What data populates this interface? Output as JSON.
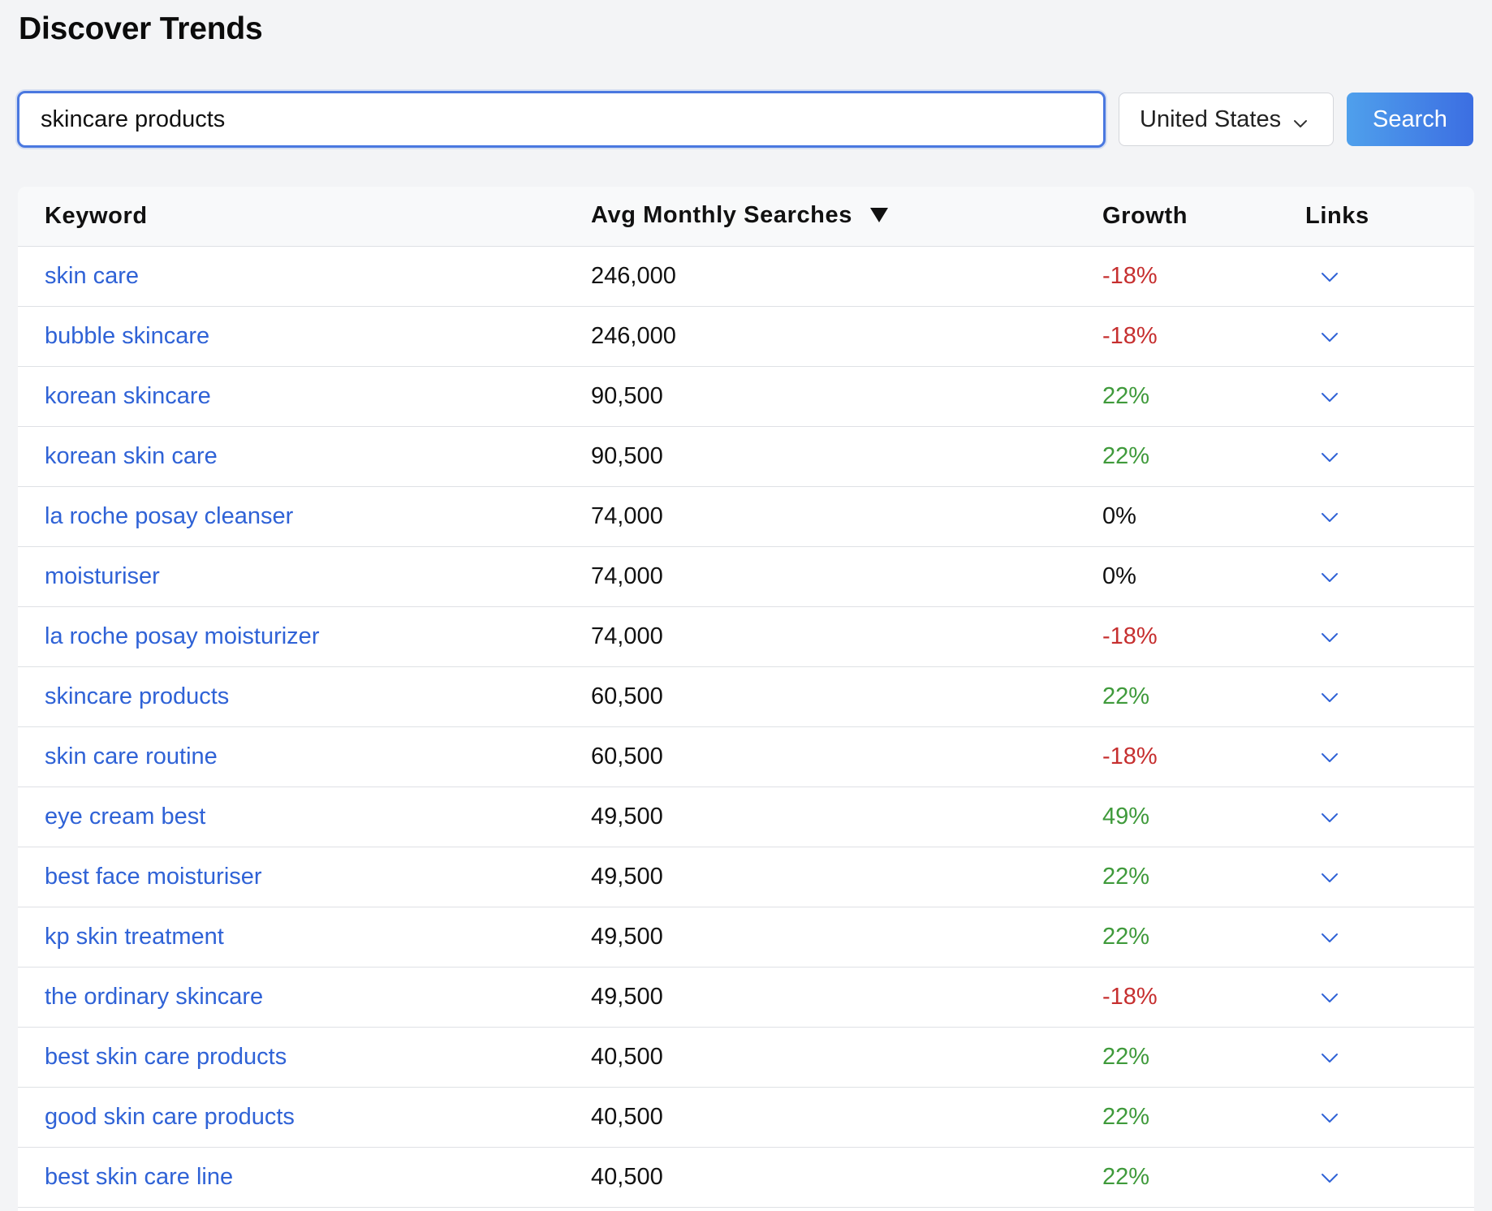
{
  "page": {
    "title": "Discover Trends"
  },
  "search": {
    "value": "skincare products",
    "country": "United States",
    "button_label": "Search"
  },
  "table": {
    "columns": {
      "keyword": "Keyword",
      "avg": "Avg Monthly Searches",
      "growth": "Growth",
      "links": "Links"
    },
    "rows": [
      {
        "keyword": "skin care",
        "avg": "246,000",
        "growth": "-18%",
        "trend": "neg"
      },
      {
        "keyword": "bubble skincare",
        "avg": "246,000",
        "growth": "-18%",
        "trend": "neg"
      },
      {
        "keyword": "korean skincare",
        "avg": "90,500",
        "growth": "22%",
        "trend": "pos"
      },
      {
        "keyword": "korean skin care",
        "avg": "90,500",
        "growth": "22%",
        "trend": "pos"
      },
      {
        "keyword": "la roche posay cleanser",
        "avg": "74,000",
        "growth": "0%",
        "trend": "zero"
      },
      {
        "keyword": "moisturiser",
        "avg": "74,000",
        "growth": "0%",
        "trend": "zero"
      },
      {
        "keyword": "la roche posay moisturizer",
        "avg": "74,000",
        "growth": "-18%",
        "trend": "neg"
      },
      {
        "keyword": "skincare products",
        "avg": "60,500",
        "growth": "22%",
        "trend": "pos"
      },
      {
        "keyword": "skin care routine",
        "avg": "60,500",
        "growth": "-18%",
        "trend": "neg"
      },
      {
        "keyword": "eye cream best",
        "avg": "49,500",
        "growth": "49%",
        "trend": "pos"
      },
      {
        "keyword": "best face moisturiser",
        "avg": "49,500",
        "growth": "22%",
        "trend": "pos"
      },
      {
        "keyword": "kp skin treatment",
        "avg": "49,500",
        "growth": "22%",
        "trend": "pos"
      },
      {
        "keyword": "the ordinary skincare",
        "avg": "49,500",
        "growth": "-18%",
        "trend": "neg"
      },
      {
        "keyword": "best skin care products",
        "avg": "40,500",
        "growth": "22%",
        "trend": "pos"
      },
      {
        "keyword": "good skin care products",
        "avg": "40,500",
        "growth": "22%",
        "trend": "pos"
      },
      {
        "keyword": "best skin care line",
        "avg": "40,500",
        "growth": "22%",
        "trend": "pos"
      }
    ]
  },
  "icons": {
    "sort": "sort-desc-icon",
    "select_chevron": "chevron-down-icon",
    "row_chevron": "chevron-down-icon"
  },
  "colors": {
    "accent": "#2f62d6",
    "negative": "#c62f2f",
    "positive": "#3f9a3b",
    "button_start": "#4fa0ec",
    "button_end": "#3c6ee2"
  }
}
